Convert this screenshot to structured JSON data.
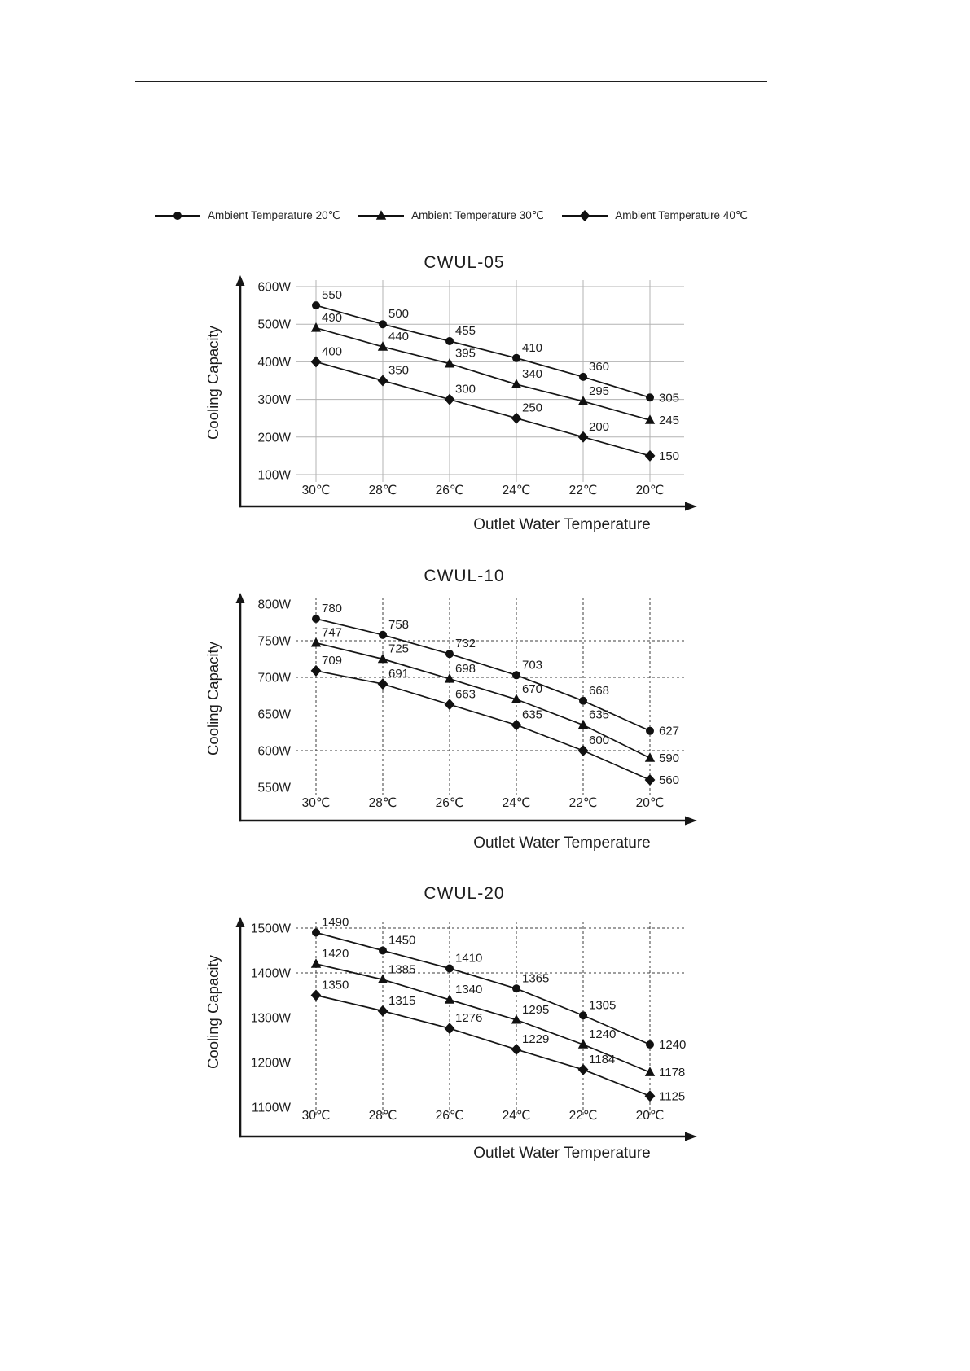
{
  "page": {
    "legend": [
      {
        "label": "Ambient Temperature 20℃",
        "marker": "circle"
      },
      {
        "label": "Ambient Temperature 30℃",
        "marker": "triangle"
      },
      {
        "label": "Ambient Temperature 40℃",
        "marker": "diamond"
      }
    ]
  },
  "chart_data": [
    {
      "type": "line",
      "title": "CWUL-05",
      "xlabel": "Outlet Water Temperature",
      "ylabel": "Cooling Capacity",
      "categories": [
        "30℃",
        "28℃",
        "26℃",
        "24℃",
        "22℃",
        "20℃"
      ],
      "ylim": [
        100,
        600
      ],
      "y_ticks": [
        {
          "label": "600W",
          "value": 600
        },
        {
          "label": "500W",
          "value": 500
        },
        {
          "label": "400W",
          "value": 400
        },
        {
          "label": "300W",
          "value": 300
        },
        {
          "label": "200W",
          "value": 200
        },
        {
          "label": "100W",
          "value": 100
        }
      ],
      "grid": {
        "style": "solid"
      },
      "series": [
        {
          "name": "Ambient Temperature 20℃",
          "marker": "circle",
          "values": [
            550,
            500,
            455,
            410,
            360,
            305
          ]
        },
        {
          "name": "Ambient Temperature 30℃",
          "marker": "triangle",
          "values": [
            490,
            440,
            395,
            340,
            295,
            245
          ]
        },
        {
          "name": "Ambient Temperature 40℃",
          "marker": "diamond",
          "values": [
            400,
            350,
            300,
            250,
            200,
            150
          ]
        }
      ]
    },
    {
      "type": "line",
      "title": "CWUL-10",
      "xlabel": "Outlet Water Temperature",
      "ylabel": "Cooling Capacity",
      "categories": [
        "30℃",
        "28℃",
        "26℃",
        "24℃",
        "22℃",
        "20℃"
      ],
      "ylim": [
        550,
        800
      ],
      "y_ticks": [
        {
          "label": "800W",
          "value": 800
        },
        {
          "label": "750W",
          "value": 750
        },
        {
          "label": "700W",
          "value": 700
        },
        {
          "label": "650W",
          "value": 650
        },
        {
          "label": "600W",
          "value": 600
        },
        {
          "label": "550W",
          "value": 550
        }
      ],
      "grid": {
        "style": "dashed",
        "h_lines": [
          750,
          700,
          600
        ]
      },
      "series": [
        {
          "name": "Ambient Temperature 20℃",
          "marker": "circle",
          "values": [
            780,
            758,
            732,
            703,
            668,
            627
          ]
        },
        {
          "name": "Ambient Temperature 30℃",
          "marker": "triangle",
          "values": [
            747,
            725,
            698,
            670,
            635,
            590
          ]
        },
        {
          "name": "Ambient Temperature 40℃",
          "marker": "diamond",
          "values": [
            709,
            691,
            663,
            635,
            600,
            560
          ]
        }
      ]
    },
    {
      "type": "line",
      "title": "CWUL-20",
      "xlabel": "Outlet Water Temperature",
      "ylabel": "Cooling Capacity",
      "categories": [
        "30℃",
        "28℃",
        "26℃",
        "24℃",
        "22℃",
        "20℃"
      ],
      "ylim": [
        1100,
        1500
      ],
      "y_ticks": [
        {
          "label": "1500W",
          "value": 1500
        },
        {
          "label": "1400W",
          "value": 1400
        },
        {
          "label": "1300W",
          "value": 1300
        },
        {
          "label": "1200W",
          "value": 1200
        },
        {
          "label": "1100W",
          "value": 1100
        }
      ],
      "grid": {
        "style": "dashed",
        "h_lines": [
          1500,
          1400
        ]
      },
      "series": [
        {
          "name": "Ambient Temperature 20℃",
          "marker": "circle",
          "values": [
            1490,
            1450,
            1410,
            1365,
            1305,
            1240
          ]
        },
        {
          "name": "Ambient Temperature 30℃",
          "marker": "triangle",
          "values": [
            1420,
            1385,
            1340,
            1295,
            1240,
            1178
          ]
        },
        {
          "name": "Ambient Temperature 40℃",
          "marker": "diamond",
          "values": [
            1350,
            1315,
            1276,
            1229,
            1184,
            1125
          ]
        }
      ]
    }
  ]
}
